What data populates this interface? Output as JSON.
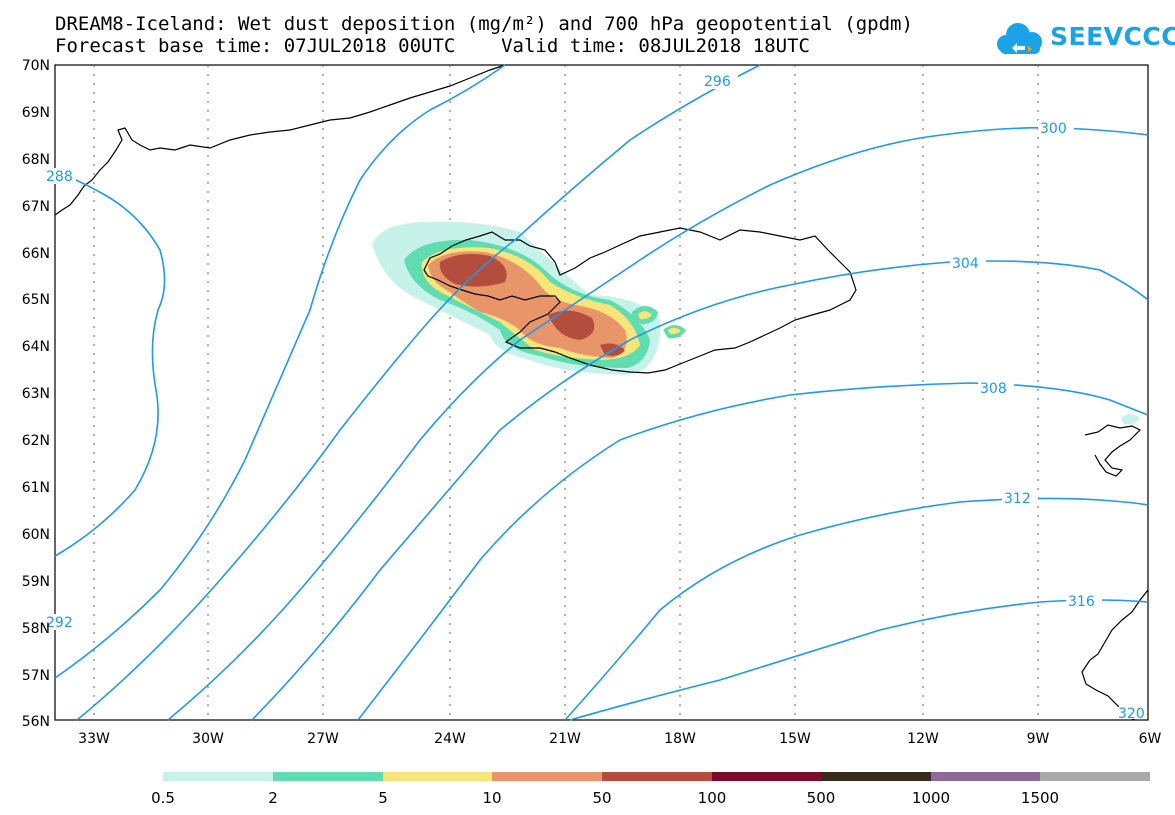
{
  "title_line1": "DREAM8-Iceland: Wet dust deposition (mg/m²) and 700 hPa geopotential (gpdm)",
  "title_line2": "Forecast base time: 07JUL2018 00UTC    Valid time: 08JUL2018 18UTC",
  "logo": {
    "text": "SEEVCCC",
    "icon": "cloud-icon",
    "color": "#1aa3e8"
  },
  "map": {
    "lat_labels": [
      "70N",
      "69N",
      "68N",
      "67N",
      "66N",
      "65N",
      "64N",
      "63N",
      "62N",
      "61N",
      "60N",
      "59N",
      "58N",
      "57N",
      "56N"
    ],
    "lon_labels": [
      "33W",
      "30W",
      "27W",
      "24W",
      "21W",
      "18W",
      "15W",
      "12W",
      "9W",
      "6W"
    ],
    "contour_labels": [
      "296",
      "300",
      "304",
      "308",
      "312",
      "316",
      "288",
      "292",
      "320"
    ],
    "contour_color": "#1e9ae6"
  },
  "legend": {
    "colors": [
      "#c6f2ea",
      "#5fdcb0",
      "#f7e57a",
      "#e8956a",
      "#b34e3e",
      "#7d0a2a",
      "#3a2a1c",
      "#8e6a98",
      "#a9a9a9"
    ],
    "labels": [
      "0.5",
      "2",
      "5",
      "10",
      "50",
      "100",
      "500",
      "1000",
      "1500"
    ]
  }
}
